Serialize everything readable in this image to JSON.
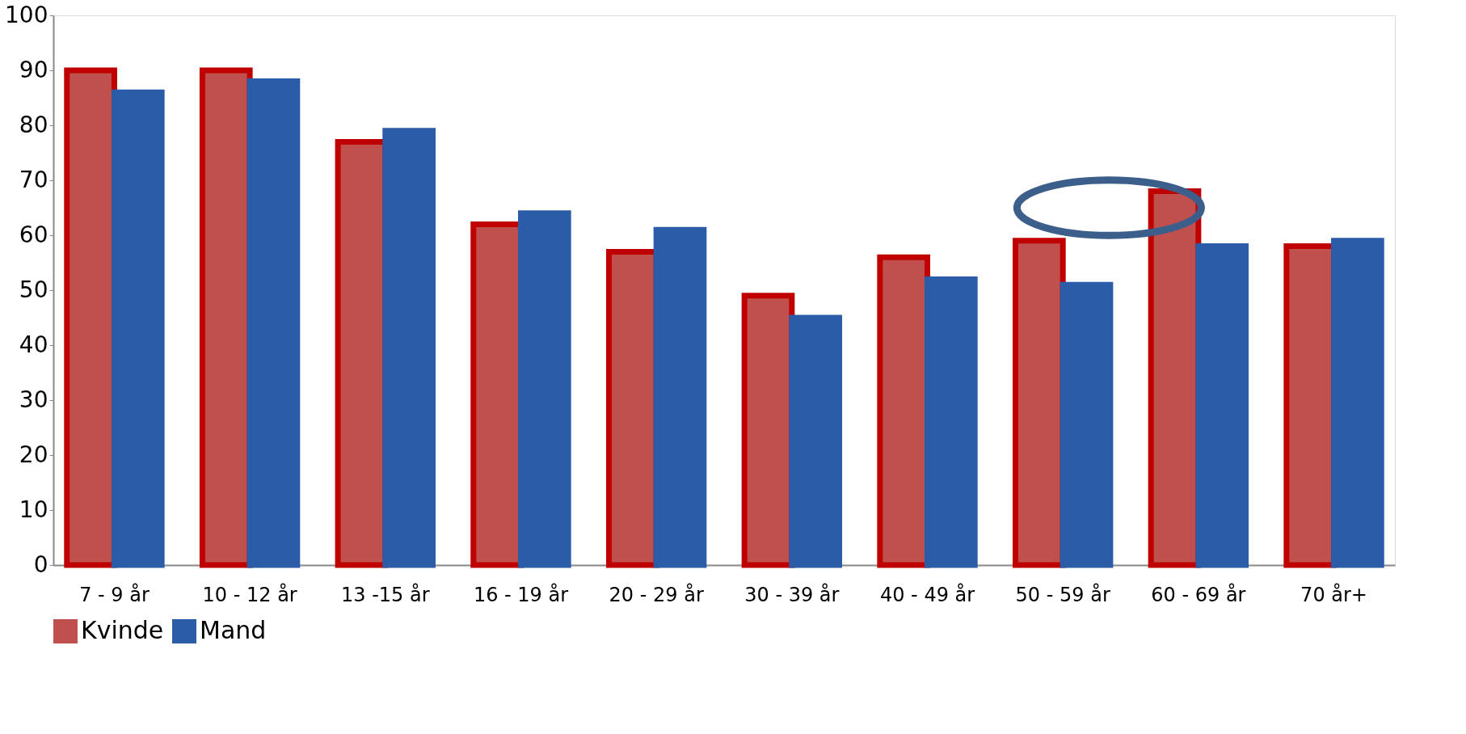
{
  "chart_data": {
    "type": "bar",
    "categories": [
      "7 - 9 år",
      "10 - 12 år",
      "13 -15 år",
      "16 - 19 år",
      "20 - 29 år",
      "30 - 39 år",
      "40 - 49 år",
      "50 - 59 år",
      "60 - 69 år",
      "70 år+"
    ],
    "series": [
      {
        "name": "Kvinde",
        "color": "#c0504d",
        "values": [
          90,
          90,
          77,
          62,
          57,
          49,
          56,
          59,
          68,
          58
        ]
      },
      {
        "name": "Mand",
        "color": "#2a5ca8",
        "values": [
          86,
          88,
          79,
          64,
          61,
          45,
          52,
          51,
          58,
          59
        ]
      }
    ],
    "ylim": [
      0,
      100
    ],
    "yticks": [
      0,
      10,
      20,
      30,
      40,
      50,
      60,
      70,
      80,
      90,
      100
    ],
    "grid": false,
    "legend": "bottom"
  }
}
